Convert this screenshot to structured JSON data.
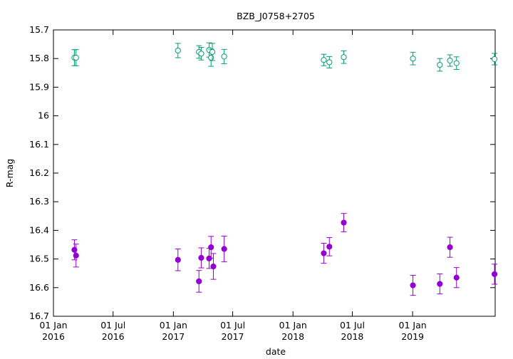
{
  "chart_data": {
    "type": "scatter",
    "title": "BZB_J0758+2705",
    "xlabel": "date",
    "ylabel": "R-mag",
    "y_inverted": true,
    "ylim": [
      15.7,
      16.7
    ],
    "xlim": [
      "2016-01-01",
      "2019-09-10"
    ],
    "grid": false,
    "y_ticks": [
      "15.7",
      "15.8",
      "15.9",
      "16",
      "16.1",
      "16.2",
      "16.3",
      "16.4",
      "16.5",
      "16.6",
      "16.7"
    ],
    "x_ticks": [
      {
        "date": "2016-01-01",
        "line1": "01 Jan",
        "line2": "2016"
      },
      {
        "date": "2016-07-01",
        "line1": "01 Jul",
        "line2": "2016"
      },
      {
        "date": "2017-01-01",
        "line1": "01 Jan",
        "line2": "2017"
      },
      {
        "date": "2017-07-01",
        "line1": "01 Jul",
        "line2": "2017"
      },
      {
        "date": "2018-01-01",
        "line1": "01 Jan",
        "line2": "2018"
      },
      {
        "date": "2018-07-01",
        "line1": "01 Jul",
        "line2": "2018"
      },
      {
        "date": "2019-01-01",
        "line1": "01 Jan",
        "line2": "2019"
      }
    ],
    "series": [
      {
        "color": "#009e73",
        "marker": "open-circle",
        "points": [
          {
            "x": "2016-03-05",
            "y": 15.797,
            "err": 0.028
          },
          {
            "x": "2016-03-10",
            "y": 15.797,
            "err": 0.028
          },
          {
            "x": "2017-01-15",
            "y": 15.772,
            "err": 0.025
          },
          {
            "x": "2017-03-20",
            "y": 15.777,
            "err": 0.022
          },
          {
            "x": "2017-03-27",
            "y": 15.783,
            "err": 0.022
          },
          {
            "x": "2017-04-20",
            "y": 15.77,
            "err": 0.025
          },
          {
            "x": "2017-04-26",
            "y": 15.797,
            "err": 0.03
          },
          {
            "x": "2017-04-30",
            "y": 15.777,
            "err": 0.03
          },
          {
            "x": "2017-06-05",
            "y": 15.793,
            "err": 0.025
          },
          {
            "x": "2018-04-05",
            "y": 15.805,
            "err": 0.02
          },
          {
            "x": "2018-04-22",
            "y": 15.813,
            "err": 0.02
          },
          {
            "x": "2018-06-05",
            "y": 15.795,
            "err": 0.022
          },
          {
            "x": "2019-01-02",
            "y": 15.8,
            "err": 0.022
          },
          {
            "x": "2019-03-25",
            "y": 15.822,
            "err": 0.022
          },
          {
            "x": "2019-04-25",
            "y": 15.807,
            "err": 0.02
          },
          {
            "x": "2019-05-15",
            "y": 15.816,
            "err": 0.022
          },
          {
            "x": "2019-09-08",
            "y": 15.802,
            "err": 0.02
          }
        ]
      },
      {
        "color": "#9400d3",
        "marker": "filled-circle",
        "points": [
          {
            "x": "2016-03-05",
            "y": 16.468,
            "err": 0.035
          },
          {
            "x": "2016-03-10",
            "y": 16.488,
            "err": 0.04
          },
          {
            "x": "2017-01-15",
            "y": 16.503,
            "err": 0.038
          },
          {
            "x": "2017-03-20",
            "y": 16.578,
            "err": 0.038
          },
          {
            "x": "2017-03-27",
            "y": 16.496,
            "err": 0.035
          },
          {
            "x": "2017-04-20",
            "y": 16.498,
            "err": 0.035
          },
          {
            "x": "2017-04-26",
            "y": 16.459,
            "err": 0.038
          },
          {
            "x": "2017-05-03",
            "y": 16.526,
            "err": 0.045
          },
          {
            "x": "2017-06-05",
            "y": 16.465,
            "err": 0.045
          },
          {
            "x": "2018-04-05",
            "y": 16.48,
            "err": 0.035
          },
          {
            "x": "2018-04-22",
            "y": 16.457,
            "err": 0.032
          },
          {
            "x": "2018-06-05",
            "y": 16.373,
            "err": 0.032
          },
          {
            "x": "2019-01-02",
            "y": 16.592,
            "err": 0.035
          },
          {
            "x": "2019-03-25",
            "y": 16.587,
            "err": 0.035
          },
          {
            "x": "2019-04-25",
            "y": 16.459,
            "err": 0.035
          },
          {
            "x": "2019-05-15",
            "y": 16.565,
            "err": 0.035
          },
          {
            "x": "2019-09-08",
            "y": 16.553,
            "err": 0.035
          }
        ]
      }
    ]
  }
}
